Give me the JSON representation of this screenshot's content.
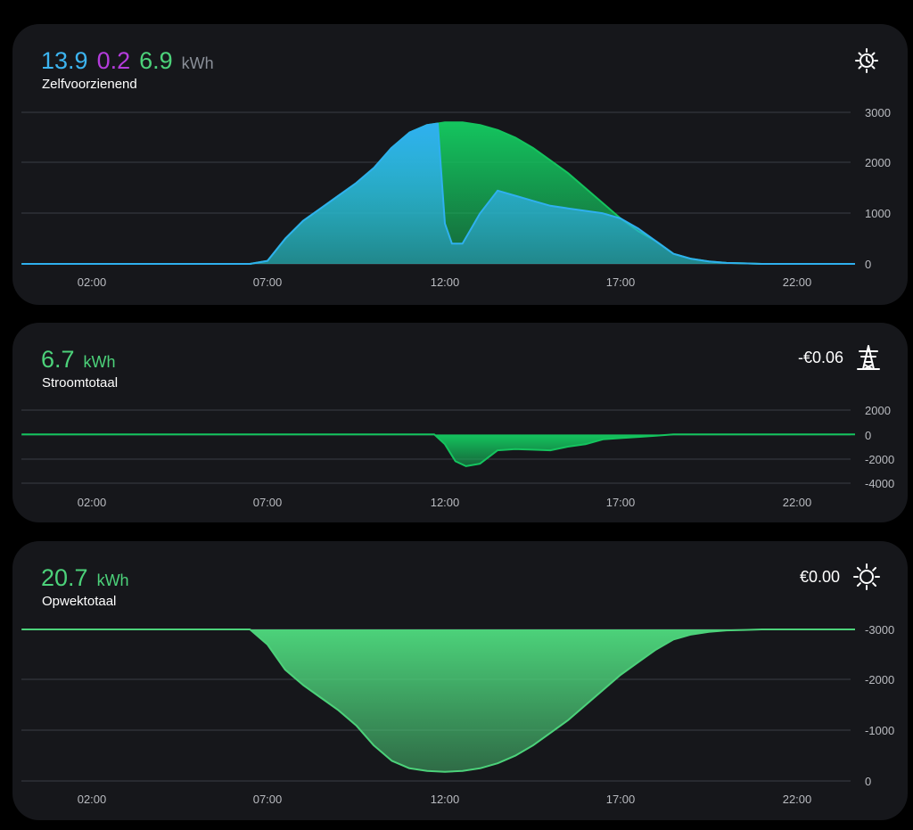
{
  "cards": {
    "self_sufficient": {
      "values": [
        "13.9",
        "0.2",
        "6.9"
      ],
      "unit": "kWh",
      "label": "Zelfvoorzienend",
      "icon": "solar-clock-icon",
      "colors": {
        "self_used": "#3cb4f0",
        "battery": "#b43cdc",
        "returned": "#4cd27a",
        "unit": "#8a8f98"
      }
    },
    "grid_total": {
      "value": "6.7",
      "unit": "kWh",
      "label": "Stroomtotaal",
      "price": "-€0.06",
      "icon": "transmission-tower-icon",
      "color": "#4cd27a"
    },
    "production_total": {
      "value": "20.7",
      "unit": "kWh",
      "label": "Opwektotaal",
      "price": "€0.00",
      "icon": "sun-icon",
      "color": "#4cd27a"
    }
  },
  "chart_data": [
    {
      "type": "area",
      "x_ticks": [
        "02:00",
        "07:00",
        "12:00",
        "17:00",
        "22:00"
      ],
      "y_ticks": [
        "3000",
        "2000",
        "1000",
        "0"
      ],
      "ylim": [
        0,
        3000
      ],
      "x_hours": [
        0,
        6.5,
        7,
        7.5,
        8,
        8.5,
        9,
        9.5,
        10,
        10.5,
        11,
        11.5,
        11.8,
        12,
        12.2,
        12.5,
        13,
        13.5,
        14,
        14.5,
        15,
        15.5,
        16,
        16.5,
        17,
        17.5,
        18,
        18.5,
        19,
        19.5,
        20,
        20.5,
        21,
        21.5,
        24
      ],
      "series": [
        {
          "color": "#2fb0ef",
          "values": [
            0,
            0,
            60,
            500,
            850,
            1100,
            1350,
            1600,
            1900,
            2300,
            2600,
            2750,
            2780,
            800,
            400,
            400,
            1000,
            1450,
            1350,
            1250,
            1150,
            1100,
            1050,
            1000,
            900,
            700,
            450,
            200,
            100,
            50,
            20,
            10,
            0,
            0,
            0
          ]
        },
        {
          "color": "#14c45e",
          "values": [
            0,
            0,
            60,
            500,
            850,
            1100,
            1350,
            1600,
            1900,
            2300,
            2600,
            2750,
            2780,
            2800,
            2800,
            2800,
            2750,
            2650,
            2500,
            2300,
            2050,
            1800,
            1500,
            1200,
            900,
            650,
            450,
            200,
            100,
            50,
            20,
            10,
            0,
            0,
            0
          ]
        }
      ]
    },
    {
      "type": "area",
      "x_ticks": [
        "02:00",
        "07:00",
        "12:00",
        "17:00",
        "22:00"
      ],
      "y_ticks": [
        "2000",
        "0",
        "-2000",
        "-4000"
      ],
      "ylim": [
        -4000,
        2000
      ],
      "x_hours": [
        0,
        11.7,
        12,
        12.3,
        12.6,
        13,
        13.5,
        14,
        14.5,
        15,
        15.5,
        16,
        16.5,
        17,
        17.5,
        18,
        18.5,
        24
      ],
      "series": [
        {
          "color": "#14c45e",
          "values": [
            0,
            0,
            -800,
            -2200,
            -2600,
            -2400,
            -1300,
            -1200,
            -1250,
            -1300,
            -1000,
            -800,
            -400,
            -300,
            -200,
            -100,
            0,
            0
          ]
        }
      ]
    },
    {
      "type": "area",
      "x_ticks": [
        "02:00",
        "07:00",
        "12:00",
        "17:00",
        "22:00"
      ],
      "y_ticks": [
        "-3000",
        "-2000",
        "-1000",
        "0"
      ],
      "ylim": [
        -3000,
        0
      ],
      "x_hours": [
        0,
        6.5,
        7,
        7.5,
        8,
        8.5,
        9,
        9.5,
        10,
        10.5,
        11,
        11.5,
        12,
        12.5,
        13,
        13.5,
        14,
        14.5,
        15,
        15.5,
        16,
        16.5,
        17,
        17.5,
        18,
        18.5,
        19,
        19.5,
        20,
        20.5,
        21,
        21.5,
        24
      ],
      "series": [
        {
          "color": "#4cd27a",
          "values": [
            0,
            0,
            -300,
            -800,
            -1100,
            -1350,
            -1600,
            -1900,
            -2300,
            -2600,
            -2750,
            -2800,
            -2820,
            -2800,
            -2750,
            -2650,
            -2500,
            -2300,
            -2050,
            -1800,
            -1500,
            -1200,
            -900,
            -650,
            -400,
            -200,
            -100,
            -50,
            -20,
            -10,
            0,
            0,
            0
          ]
        }
      ]
    }
  ]
}
